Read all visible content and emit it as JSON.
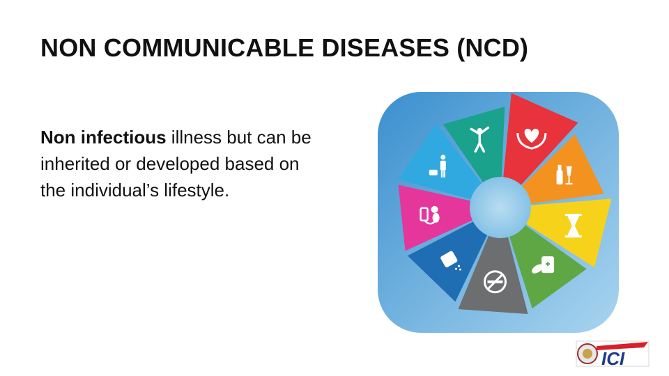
{
  "slide": {
    "title": "NON COMMUNICABLE DISEASES (NCD)",
    "body_bold": "Non infectious",
    "body_rest": " illness but can be inherited or developed based on the individual’s lifestyle."
  },
  "graphic": {
    "segments": [
      {
        "icon": "heart-hands-icon",
        "color": "#e8323c"
      },
      {
        "icon": "alcohol-bottles-icon",
        "color": "#f3921f"
      },
      {
        "icon": "hourglass-icon",
        "color": "#f7d21a"
      },
      {
        "icon": "medicine-pills-icon",
        "color": "#5fa645"
      },
      {
        "icon": "no-smoking-icon",
        "color": "#6d6e70"
      },
      {
        "icon": "salt-shaker-icon",
        "color": "#1f6db3"
      },
      {
        "icon": "blood-pressure-icon",
        "color": "#e5369c"
      },
      {
        "icon": "weight-scale-person-icon",
        "color": "#2fa9e0"
      },
      {
        "icon": "exercise-person-icon",
        "color": "#1aa28c"
      }
    ]
  },
  "logo": {
    "text": "ICI",
    "colors": {
      "red": "#d8202a",
      "blue": "#1d3c87"
    }
  }
}
